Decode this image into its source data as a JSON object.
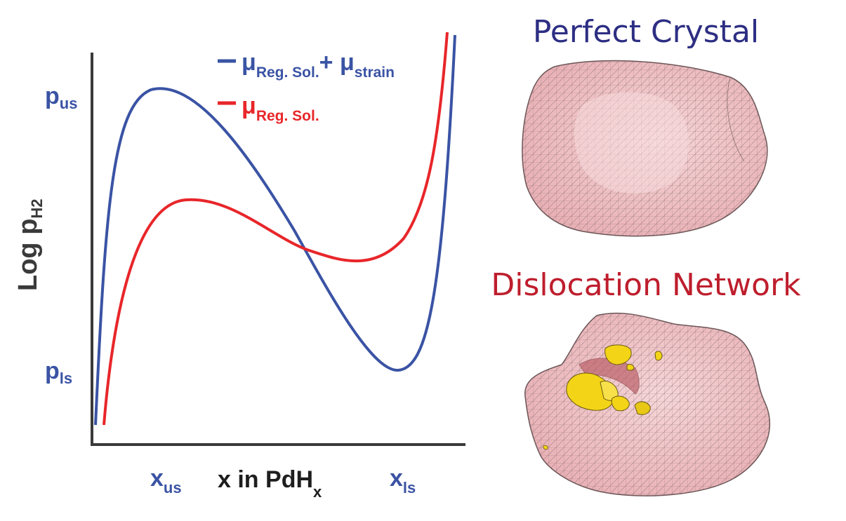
{
  "chart_data": {
    "type": "line",
    "ylabel": {
      "main": "Log p",
      "sub": "H2"
    },
    "xlabel": {
      "main": "x in PdH",
      "sub": "x"
    },
    "y_ticks": [
      {
        "main": "p",
        "sub": "us"
      },
      {
        "main": "p",
        "sub": "ls"
      }
    ],
    "x_ticks": [
      {
        "main": "x",
        "sub": "us"
      },
      {
        "main": "x",
        "sub": "ls"
      }
    ],
    "legend": [
      {
        "symbol": "μ",
        "sub": "Reg. Sol.",
        "plus": "+ μ",
        "sub2": "strain",
        "color": "#3a53a4"
      },
      {
        "symbol": "μ",
        "sub": "Reg. Sol.",
        "color": "#e8262a"
      }
    ],
    "series": [
      {
        "color": "#3a53a4"
      },
      {
        "color": "#e8262a"
      }
    ]
  },
  "panels": {
    "perfect": {
      "title": "Perfect Crystal",
      "color": "#2d2e83"
    },
    "dislocation": {
      "title": "Dislocation Network",
      "color": "#be1e2d"
    }
  },
  "colors": {
    "axis": "#3a3a3a",
    "mesh_fill": "#f0c2c6",
    "mesh_line": "#7a6466",
    "defect": "#f3d417"
  }
}
